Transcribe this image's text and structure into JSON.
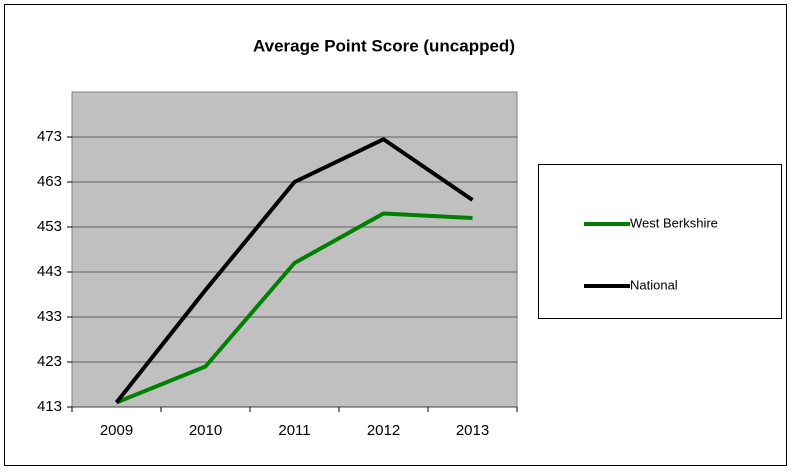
{
  "chart_data": {
    "type": "line",
    "title": "Average Point Score (uncapped)",
    "categories": [
      "2009",
      "2010",
      "2011",
      "2012",
      "2013"
    ],
    "series": [
      {
        "name": "West Berkshire",
        "color": "#008000",
        "values": [
          414,
          422,
          445,
          456,
          455
        ]
      },
      {
        "name": "National",
        "color": "#000000",
        "values": [
          414,
          439,
          463,
          472.5,
          459
        ]
      }
    ],
    "ylim": [
      413,
      483
    ],
    "yticks": [
      413,
      423,
      433,
      443,
      453,
      463,
      473
    ],
    "grid": true,
    "legend": "right"
  }
}
